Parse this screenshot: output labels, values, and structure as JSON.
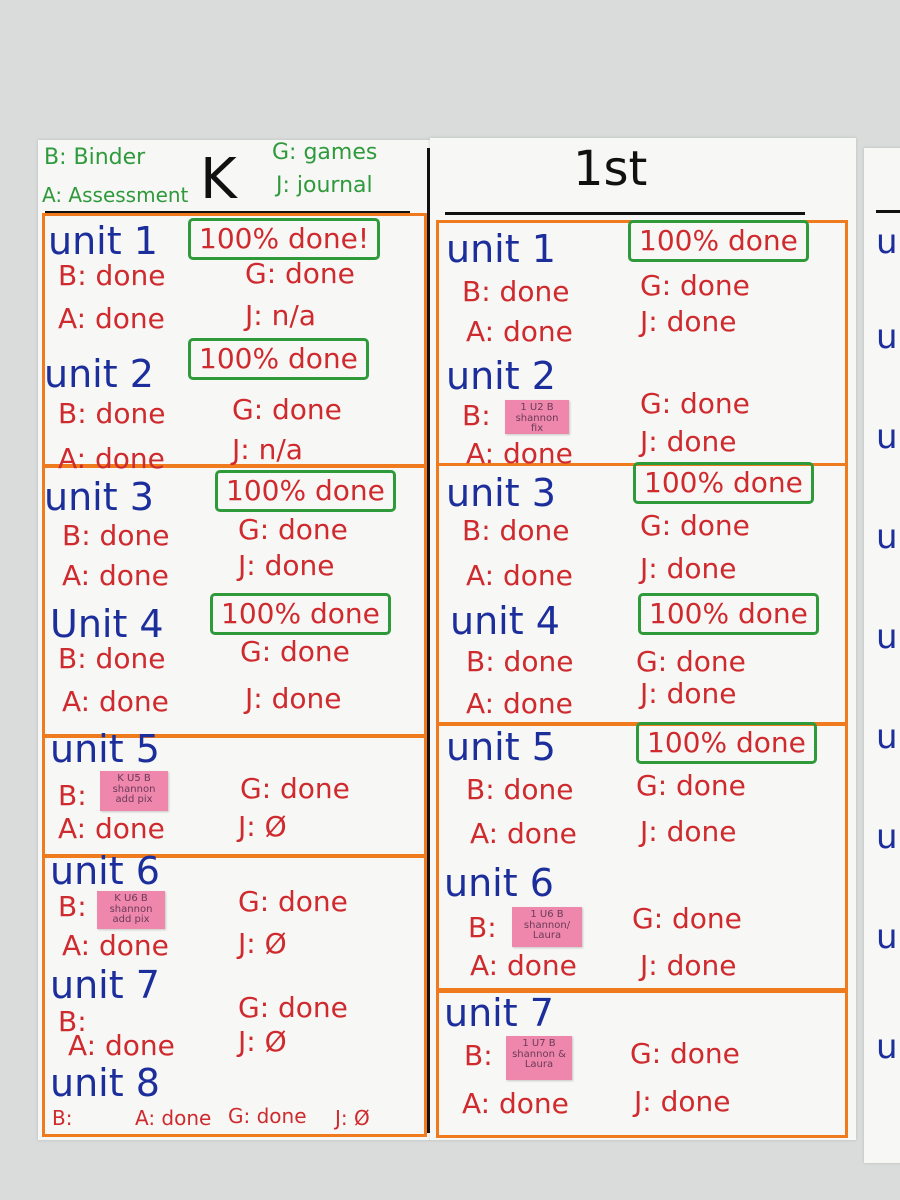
{
  "legend": {
    "binder": "B: Binder",
    "assessment": "A: Assessment",
    "games": "G: games",
    "journal": "J: journal"
  },
  "columns": {
    "k": {
      "heading": "K",
      "units": [
        {
          "title": "unit 1",
          "status": "100% done!",
          "B": "B: done",
          "G": "G: done",
          "A": "A: done",
          "J": "J: n/a"
        },
        {
          "title": "unit 2",
          "status": "100% done",
          "B": "B: done",
          "G": "G: done",
          "A": "A: done",
          "J": "J: n/a"
        },
        {
          "title": "unit 3",
          "status": "100% done",
          "B": "B: done",
          "G": "G: done",
          "A": "A: done",
          "J": "J: done"
        },
        {
          "title": "Unit 4",
          "status": "100% done",
          "B": "B: done",
          "G": "G: done",
          "A": "A: done",
          "J": "J: done"
        },
        {
          "title": "unit 5",
          "B": "B:",
          "sticky": "K U5 B\nshannon\nadd pix",
          "G": "G: done",
          "A": "A: done",
          "J": "J: Ø"
        },
        {
          "title": "unit 6",
          "B": "B:",
          "sticky": "K U6 B\nshannon\nadd pix",
          "G": "G: done",
          "A": "A: done",
          "J": "J: Ø"
        },
        {
          "title": "unit 7",
          "B": "B:",
          "G": "G: done",
          "A": "A: done",
          "J": "J: Ø"
        },
        {
          "title": "unit 8",
          "B": "B:",
          "G": "G: done",
          "A": "A: done",
          "J": "J: Ø"
        }
      ]
    },
    "first": {
      "heading": "1st",
      "units": [
        {
          "title": "unit 1",
          "status": "100% done",
          "B": "B: done",
          "G": "G: done",
          "A": "A: done",
          "J": "J: done"
        },
        {
          "title": "unit 2",
          "B": "B:",
          "sticky": "1 U2 B\nshannon\nfix",
          "G": "G: done",
          "A": "A: done",
          "J": "J: done"
        },
        {
          "title": "unit 3",
          "status": "100% done",
          "B": "B: done",
          "G": "G: done",
          "A": "A: done",
          "J": "J: done"
        },
        {
          "title": "unit 4",
          "status": "100% done",
          "B": "B: done",
          "G": "G: done",
          "A": "A: done",
          "J": "J: done"
        },
        {
          "title": "unit 5",
          "status": "100% done",
          "B": "B: done",
          "G": "G: done",
          "A": "A: done",
          "J": "J: done"
        },
        {
          "title": "unit 6",
          "B": "B:",
          "sticky": "1 U6 B\nshannon/\nLaura",
          "G": "G: done",
          "A": "A: done",
          "J": "J: done"
        },
        {
          "title": "unit 7",
          "B": "B:",
          "sticky": "1 U7 B\nshannon &\nLaura",
          "G": "G: done",
          "A": "A: done",
          "J": "J: done"
        }
      ]
    }
  },
  "colors": {
    "unit_title": "#1c2e9c",
    "items": "#cf2a2e",
    "status_box": "#2e9a3a",
    "section_box": "#f07a1e",
    "sticky": "#ef87ad"
  }
}
